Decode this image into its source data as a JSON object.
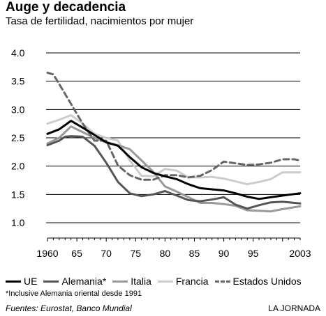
{
  "header": {
    "title": "Auge y decadencia",
    "subtitle": "Tasa de fertilidad, nacimientos por mujer"
  },
  "chart_data": {
    "type": "line",
    "title": "Auge y decadencia",
    "subtitle": "Tasa de fertilidad, nacimientos por mujer",
    "xlabel": "",
    "ylabel": "",
    "ylim": [
      1.0,
      4.0
    ],
    "xlim": [
      1960,
      2003
    ],
    "yticks": [
      "1.0",
      "1.5",
      "2.0",
      "2.5",
      "3.0",
      "3.5",
      "4.0"
    ],
    "ytick_values": [
      1.0,
      1.5,
      2.0,
      2.5,
      3.0,
      3.5,
      4.0
    ],
    "xticks": [
      "1960",
      "65",
      "70",
      "75",
      "80",
      "85",
      "90",
      "95",
      "2003"
    ],
    "xtick_values": [
      1960,
      1965,
      1970,
      1975,
      1980,
      1985,
      1990,
      1995,
      2003
    ],
    "grid": "horizontal",
    "legend_position": "bottom",
    "series": [
      {
        "name": "UE",
        "color": "#000000",
        "style": "solid",
        "x": [
          1960,
          1962,
          1964,
          1966,
          1968,
          1970,
          1972,
          1974,
          1976,
          1978,
          1980,
          1982,
          1984,
          1986,
          1988,
          1990,
          1992,
          1994,
          1996,
          1998,
          2000,
          2003
        ],
        "y": [
          2.57,
          2.65,
          2.8,
          2.68,
          2.55,
          2.42,
          2.36,
          2.16,
          1.98,
          1.88,
          1.82,
          1.77,
          1.68,
          1.61,
          1.59,
          1.57,
          1.52,
          1.46,
          1.42,
          1.45,
          1.48,
          1.52
        ]
      },
      {
        "name": "Alemania*",
        "color": "#555555",
        "style": "solid",
        "x": [
          1960,
          1962,
          1963,
          1964,
          1966,
          1968,
          1970,
          1972,
          1974,
          1976,
          1978,
          1980,
          1982,
          1984,
          1986,
          1988,
          1990,
          1992,
          1994,
          1996,
          1998,
          2000,
          2003
        ],
        "y": [
          2.37,
          2.45,
          2.52,
          2.53,
          2.52,
          2.36,
          2.06,
          1.72,
          1.52,
          1.47,
          1.5,
          1.56,
          1.48,
          1.4,
          1.38,
          1.41,
          1.45,
          1.32,
          1.25,
          1.31,
          1.36,
          1.37,
          1.34
        ]
      },
      {
        "name": "Italia",
        "color": "#999999",
        "style": "solid",
        "x": [
          1960,
          1962,
          1964,
          1966,
          1968,
          1970,
          1972,
          1974,
          1976,
          1978,
          1980,
          1982,
          1984,
          1986,
          1988,
          1990,
          1992,
          1994,
          1996,
          1998,
          2000,
          2003
        ],
        "y": [
          2.4,
          2.5,
          2.7,
          2.6,
          2.5,
          2.42,
          2.37,
          2.3,
          2.1,
          1.9,
          1.64,
          1.55,
          1.45,
          1.35,
          1.35,
          1.33,
          1.3,
          1.22,
          1.21,
          1.2,
          1.24,
          1.29
        ]
      },
      {
        "name": "Francia",
        "color": "#cccccc",
        "style": "solid",
        "x": [
          1960,
          1962,
          1964,
          1966,
          1968,
          1970,
          1972,
          1974,
          1976,
          1978,
          1980,
          1982,
          1984,
          1986,
          1988,
          1990,
          1992,
          1994,
          1996,
          1998,
          2000,
          2003
        ],
        "y": [
          2.75,
          2.82,
          2.9,
          2.75,
          2.57,
          2.5,
          2.45,
          2.1,
          1.83,
          1.82,
          1.95,
          1.92,
          1.8,
          1.8,
          1.81,
          1.78,
          1.73,
          1.68,
          1.72,
          1.77,
          1.89,
          1.89
        ]
      },
      {
        "name": "Estados Unidos",
        "color": "#666666",
        "style": "dashed",
        "x": [
          1960,
          1961,
          1962,
          1964,
          1966,
          1968,
          1970,
          1972,
          1974,
          1976,
          1978,
          1980,
          1982,
          1984,
          1986,
          1988,
          1990,
          1992,
          1994,
          1996,
          1998,
          2000,
          2002,
          2003
        ],
        "y": [
          3.65,
          3.62,
          3.45,
          3.1,
          2.75,
          2.45,
          2.45,
          2.01,
          1.84,
          1.76,
          1.76,
          1.84,
          1.84,
          1.8,
          1.83,
          1.93,
          2.08,
          2.05,
          2.02,
          2.03,
          2.06,
          2.12,
          2.12,
          2.1
        ]
      }
    ]
  },
  "footnote": "*Inclusive Alemania oriental desde 1991",
  "source": "Fuentes: Eurostat, Banco Mundial",
  "credit": "LA JORNADA"
}
